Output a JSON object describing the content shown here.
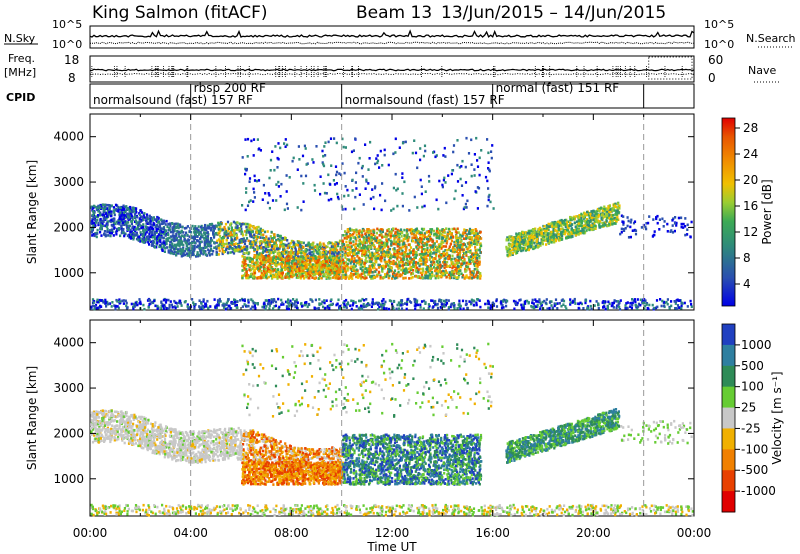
{
  "header": {
    "title": "King Salmon (fitACF)",
    "beam": "Beam 13",
    "dates": "13/Jun/2015 – 14/Jun/2015"
  },
  "top_panels": {
    "nsky_label": "N.Sky",
    "nsearch_label": "N.Search",
    "noise_ticks_left": [
      "10^5",
      "10^0"
    ],
    "noise_ticks_right": [
      "10^5",
      "10^0"
    ],
    "freq_label_line1": "Freq.",
    "freq_label_line2": "[MHz]",
    "freq_ticks": [
      "18",
      "8"
    ],
    "nave_label": "Nave",
    "nave_ticks": [
      "60",
      "0"
    ],
    "cpid_label": "CPID"
  },
  "cpid_segments": [
    {
      "label": "normalsound (fast) 157 RF",
      "start_h": 0.0
    },
    {
      "label": "rbsp 200 RF",
      "start_h": 4.0
    },
    {
      "label": "normalsound (fast) 157 RF",
      "start_h": 10.0
    },
    {
      "label": "normal (fast) 151 RF",
      "start_h": 16.0
    }
  ],
  "cpid_boundaries_h": [
    4.0,
    10.0,
    16.0,
    22.0
  ],
  "x_axis": {
    "label": "Time UT",
    "ticks": [
      "00:00",
      "04:00",
      "08:00",
      "12:00",
      "16:00",
      "20:00",
      "00:00"
    ]
  },
  "power_panel": {
    "ylabel": "Slant Range [km]",
    "yticks": [
      "4000",
      "3000",
      "2000",
      "1000"
    ],
    "colorbar_label": "Power [dB]",
    "colorbar_ticks": [
      "28",
      "24",
      "20",
      "16",
      "12",
      "8",
      "4"
    ],
    "colors": [
      "#0000e6",
      "#2a4fb0",
      "#2e8b7a",
      "#3caa55",
      "#9acd32",
      "#f0c000",
      "#f08a00",
      "#e85500",
      "#e00000"
    ]
  },
  "velocity_panel": {
    "ylabel": "Slant Range [km]",
    "yticks": [
      "4000",
      "3000",
      "2000",
      "1000"
    ],
    "colorbar_label": "Velocity [m s⁻¹]",
    "colorbar_ticks": [
      "1000",
      "500",
      "100",
      "25",
      "-25",
      "-100",
      "-500",
      "-1000"
    ],
    "colors": [
      "#2040c0",
      "#2e7fa0",
      "#2e8b57",
      "#66cc33",
      "#c8c8c8",
      "#f0b000",
      "#f08000",
      "#e84000",
      "#e00000"
    ]
  }
}
